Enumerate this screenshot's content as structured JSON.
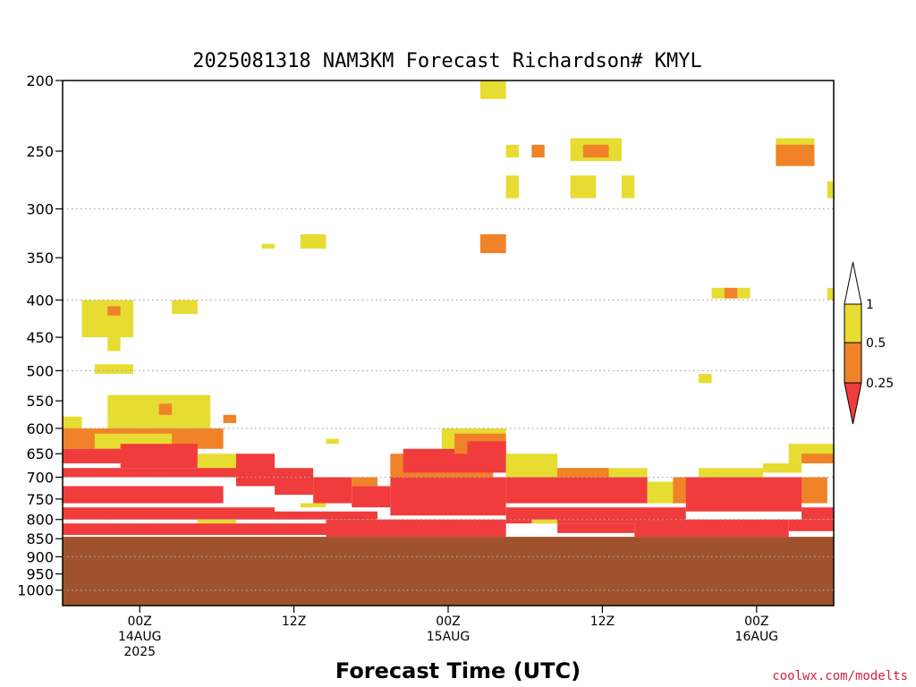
{
  "chart_data": {
    "type": "heatmap",
    "title": "2025081318 NAM3KM Forecast Richardson# KMYL",
    "xlabel": "Forecast Time (UTC)",
    "ylabel": "",
    "y_scale": "log",
    "y_reversed": true,
    "ylim_hPa": [
      200,
      1050
    ],
    "y_ticks": [
      "200",
      "250",
      "300",
      "350",
      "400",
      "450",
      "500",
      "550",
      "600",
      "650",
      "700",
      "750",
      "800",
      "850",
      "900",
      "950",
      "1000"
    ],
    "x_ticks": [
      {
        "hours": 6,
        "lines": [
          "00Z",
          "14AUG",
          "2025"
        ]
      },
      {
        "hours": 18,
        "lines": [
          "12Z"
        ]
      },
      {
        "hours": 30,
        "lines": [
          "00Z",
          "15AUG"
        ]
      },
      {
        "hours": 42,
        "lines": [
          "12Z"
        ]
      },
      {
        "hours": 54,
        "lines": [
          "00Z",
          "16AUG"
        ]
      }
    ],
    "xlim_hours": [
      0,
      60
    ],
    "grid_levels_hPa": [
      300,
      400,
      500,
      600,
      700,
      800,
      900,
      1000
    ],
    "ground_level_hPa": 845,
    "ground_color": "#a0522d",
    "legend": {
      "placement": "right",
      "levels": [
        "0.25",
        "0.5",
        "1"
      ],
      "bands": [
        {
          "range": "< 0.25",
          "color": "#f03c3c"
        },
        {
          "range": "0.25 - 0.5",
          "color": "#f08228"
        },
        {
          "range": "0.5 - 1",
          "color": "#e6dc32"
        },
        {
          "range": "> 1",
          "color": "#ffffff"
        }
      ]
    },
    "cells": [
      {
        "t": 1.5,
        "t2": 5.5,
        "p": 400,
        "p2": 450,
        "c": "#e6dc32"
      },
      {
        "t": 3.5,
        "t2": 4.5,
        "p": 408,
        "p2": 420,
        "c": "#f08228"
      },
      {
        "t": 2.5,
        "t2": 5.5,
        "p": 490,
        "p2": 505,
        "c": "#e6dc32"
      },
      {
        "t": 3.5,
        "t2": 4.5,
        "p": 450,
        "p2": 470,
        "c": "#e6dc32"
      },
      {
        "t": 8.5,
        "t2": 10.5,
        "p": 400,
        "p2": 418,
        "c": "#e6dc32"
      },
      {
        "t": 15.5,
        "t2": 16.5,
        "p": 335,
        "p2": 340,
        "c": "#e6dc32"
      },
      {
        "t": 18.5,
        "t2": 20.5,
        "p": 325,
        "p2": 340,
        "c": "#e6dc32"
      },
      {
        "t": 32.5,
        "t2": 34.5,
        "p": 200,
        "p2": 212,
        "c": "#e6dc32"
      },
      {
        "t": 32.5,
        "t2": 34.5,
        "p": 325,
        "p2": 345,
        "c": "#f08228"
      },
      {
        "t": 34.5,
        "t2": 35.5,
        "p": 245,
        "p2": 255,
        "c": "#e6dc32"
      },
      {
        "t": 34.5,
        "t2": 35.5,
        "p": 270,
        "p2": 290,
        "c": "#e6dc32"
      },
      {
        "t": 36.5,
        "t2": 37.5,
        "p": 245,
        "p2": 255,
        "c": "#f08228"
      },
      {
        "t": 39.5,
        "t2": 43.5,
        "p": 240,
        "p2": 258,
        "c": "#e6dc32"
      },
      {
        "t": 40.5,
        "t2": 42.5,
        "p": 245,
        "p2": 255,
        "c": "#f08228"
      },
      {
        "t": 39.5,
        "t2": 41.5,
        "p": 270,
        "p2": 290,
        "c": "#e6dc32"
      },
      {
        "t": 43.5,
        "t2": 44.5,
        "p": 270,
        "p2": 290,
        "c": "#e6dc32"
      },
      {
        "t": 50.5,
        "t2": 53.5,
        "p": 385,
        "p2": 398,
        "c": "#e6dc32"
      },
      {
        "t": 51.5,
        "t2": 52.5,
        "p": 385,
        "p2": 398,
        "c": "#f08228"
      },
      {
        "t": 49.5,
        "t2": 50.5,
        "p": 505,
        "p2": 520,
        "c": "#e6dc32"
      },
      {
        "t": 55.5,
        "t2": 58.5,
        "p": 240,
        "p2": 262,
        "c": "#e6dc32"
      },
      {
        "t": 55.5,
        "t2": 58.5,
        "p": 245,
        "p2": 262,
        "c": "#f08228"
      },
      {
        "t": 59.5,
        "t2": 60,
        "p": 275,
        "p2": 290,
        "c": "#e6dc32"
      },
      {
        "t": 59.5,
        "t2": 60,
        "p": 385,
        "p2": 400,
        "c": "#e6dc32"
      },
      {
        "t": 0,
        "t2": 1.5,
        "p": 578,
        "p2": 610,
        "c": "#e6dc32"
      },
      {
        "t": 3.5,
        "t2": 11.5,
        "p": 540,
        "p2": 600,
        "c": "#e6dc32"
      },
      {
        "t": 7.5,
        "t2": 8.5,
        "p": 555,
        "p2": 575,
        "c": "#f08228"
      },
      {
        "t": 5.5,
        "t2": 6.5,
        "p": 575,
        "p2": 590,
        "c": "#e6dc32"
      },
      {
        "t": 12.5,
        "t2": 13.5,
        "p": 575,
        "p2": 590,
        "c": "#f08228"
      },
      {
        "t": 0,
        "t2": 12.5,
        "p": 600,
        "p2": 640,
        "c": "#f08228"
      },
      {
        "t": 2.5,
        "t2": 8.5,
        "p": 610,
        "p2": 640,
        "c": "#e6dc32"
      },
      {
        "t": 0,
        "t2": 10.5,
        "p": 640,
        "p2": 670,
        "c": "#f03c3c"
      },
      {
        "t": 4.5,
        "t2": 10.5,
        "p": 630,
        "p2": 680,
        "c": "#f03c3c"
      },
      {
        "t": 10.5,
        "t2": 13.5,
        "p": 650,
        "p2": 690,
        "c": "#e6dc32"
      },
      {
        "t": 0,
        "t2": 13.5,
        "p": 680,
        "p2": 700,
        "c": "#f03c3c"
      },
      {
        "t": 13.5,
        "t2": 16.5,
        "p": 650,
        "p2": 720,
        "c": "#f03c3c"
      },
      {
        "t": 16.5,
        "t2": 19.5,
        "p": 680,
        "p2": 740,
        "c": "#f03c3c"
      },
      {
        "t": 19.5,
        "t2": 22.5,
        "p": 700,
        "p2": 760,
        "c": "#f03c3c"
      },
      {
        "t": 22.5,
        "t2": 25.5,
        "p": 720,
        "p2": 770,
        "c": "#f03c3c"
      },
      {
        "t": 20.5,
        "t2": 21.5,
        "p": 620,
        "p2": 630,
        "c": "#e6dc32"
      },
      {
        "t": 22.5,
        "t2": 24.5,
        "p": 700,
        "p2": 720,
        "c": "#f08228"
      },
      {
        "t": 25.5,
        "t2": 33.5,
        "p": 650,
        "p2": 700,
        "c": "#f08228"
      },
      {
        "t": 26.5,
        "t2": 34.5,
        "p": 640,
        "p2": 690,
        "c": "#f03c3c"
      },
      {
        "t": 29.5,
        "t2": 34.5,
        "p": 600,
        "p2": 640,
        "c": "#e6dc32"
      },
      {
        "t": 30.5,
        "t2": 34.5,
        "p": 610,
        "p2": 650,
        "c": "#f08228"
      },
      {
        "t": 31.5,
        "t2": 34.5,
        "p": 625,
        "p2": 660,
        "c": "#f03c3c"
      },
      {
        "t": 25.5,
        "t2": 34.5,
        "p": 700,
        "p2": 790,
        "c": "#f03c3c"
      },
      {
        "t": 34.5,
        "t2": 38.5,
        "p": 650,
        "p2": 700,
        "c": "#e6dc32"
      },
      {
        "t": 37.5,
        "t2": 45.5,
        "p": 680,
        "p2": 740,
        "c": "#e6dc32"
      },
      {
        "t": 38.5,
        "t2": 42.5,
        "p": 680,
        "p2": 720,
        "c": "#f08228"
      },
      {
        "t": 34.5,
        "t2": 45.5,
        "p": 700,
        "p2": 760,
        "c": "#f03c3c"
      },
      {
        "t": 45.5,
        "t2": 48.5,
        "p": 710,
        "p2": 760,
        "c": "#e6dc32"
      },
      {
        "t": 47.5,
        "t2": 59.5,
        "p": 700,
        "p2": 760,
        "c": "#f08228"
      },
      {
        "t": 48.5,
        "t2": 57.5,
        "p": 700,
        "p2": 780,
        "c": "#f03c3c"
      },
      {
        "t": 49.5,
        "t2": 54.5,
        "p": 680,
        "p2": 700,
        "c": "#e6dc32"
      },
      {
        "t": 54.5,
        "t2": 57.5,
        "p": 670,
        "p2": 690,
        "c": "#e6dc32"
      },
      {
        "t": 56.5,
        "t2": 60,
        "p": 630,
        "p2": 670,
        "c": "#e6dc32"
      },
      {
        "t": 57.5,
        "t2": 60,
        "p": 650,
        "p2": 670,
        "c": "#f08228"
      },
      {
        "t": 57.5,
        "t2": 60,
        "p": 770,
        "p2": 800,
        "c": "#f03c3c"
      },
      {
        "t": 0,
        "t2": 12.5,
        "p": 720,
        "p2": 760,
        "c": "#f03c3c"
      },
      {
        "t": 0,
        "t2": 16.5,
        "p": 770,
        "p2": 800,
        "c": "#f03c3c"
      },
      {
        "t": 16.5,
        "t2": 24.5,
        "p": 780,
        "p2": 800,
        "c": "#f03c3c"
      },
      {
        "t": 0,
        "t2": 20.5,
        "p": 810,
        "p2": 840,
        "c": "#f03c3c"
      },
      {
        "t": 20.5,
        "t2": 34.5,
        "p": 800,
        "p2": 845,
        "c": "#f03c3c"
      },
      {
        "t": 34.5,
        "t2": 48.5,
        "p": 770,
        "p2": 810,
        "c": "#f03c3c"
      },
      {
        "t": 38.5,
        "t2": 44.5,
        "p": 810,
        "p2": 835,
        "c": "#f03c3c"
      },
      {
        "t": 44.5,
        "t2": 56.5,
        "p": 800,
        "p2": 845,
        "c": "#f03c3c"
      },
      {
        "t": 56.5,
        "t2": 60,
        "p": 800,
        "p2": 830,
        "c": "#f03c3c"
      },
      {
        "t": 18.5,
        "t2": 20.5,
        "p": 760,
        "p2": 770,
        "c": "#e6dc32"
      },
      {
        "t": 36.5,
        "t2": 38.5,
        "p": 800,
        "p2": 810,
        "c": "#e6dc32"
      },
      {
        "t": 10.5,
        "t2": 13.5,
        "p": 800,
        "p2": 810,
        "c": "#e6dc32"
      }
    ]
  },
  "credit": "coolwx.com/modelts"
}
